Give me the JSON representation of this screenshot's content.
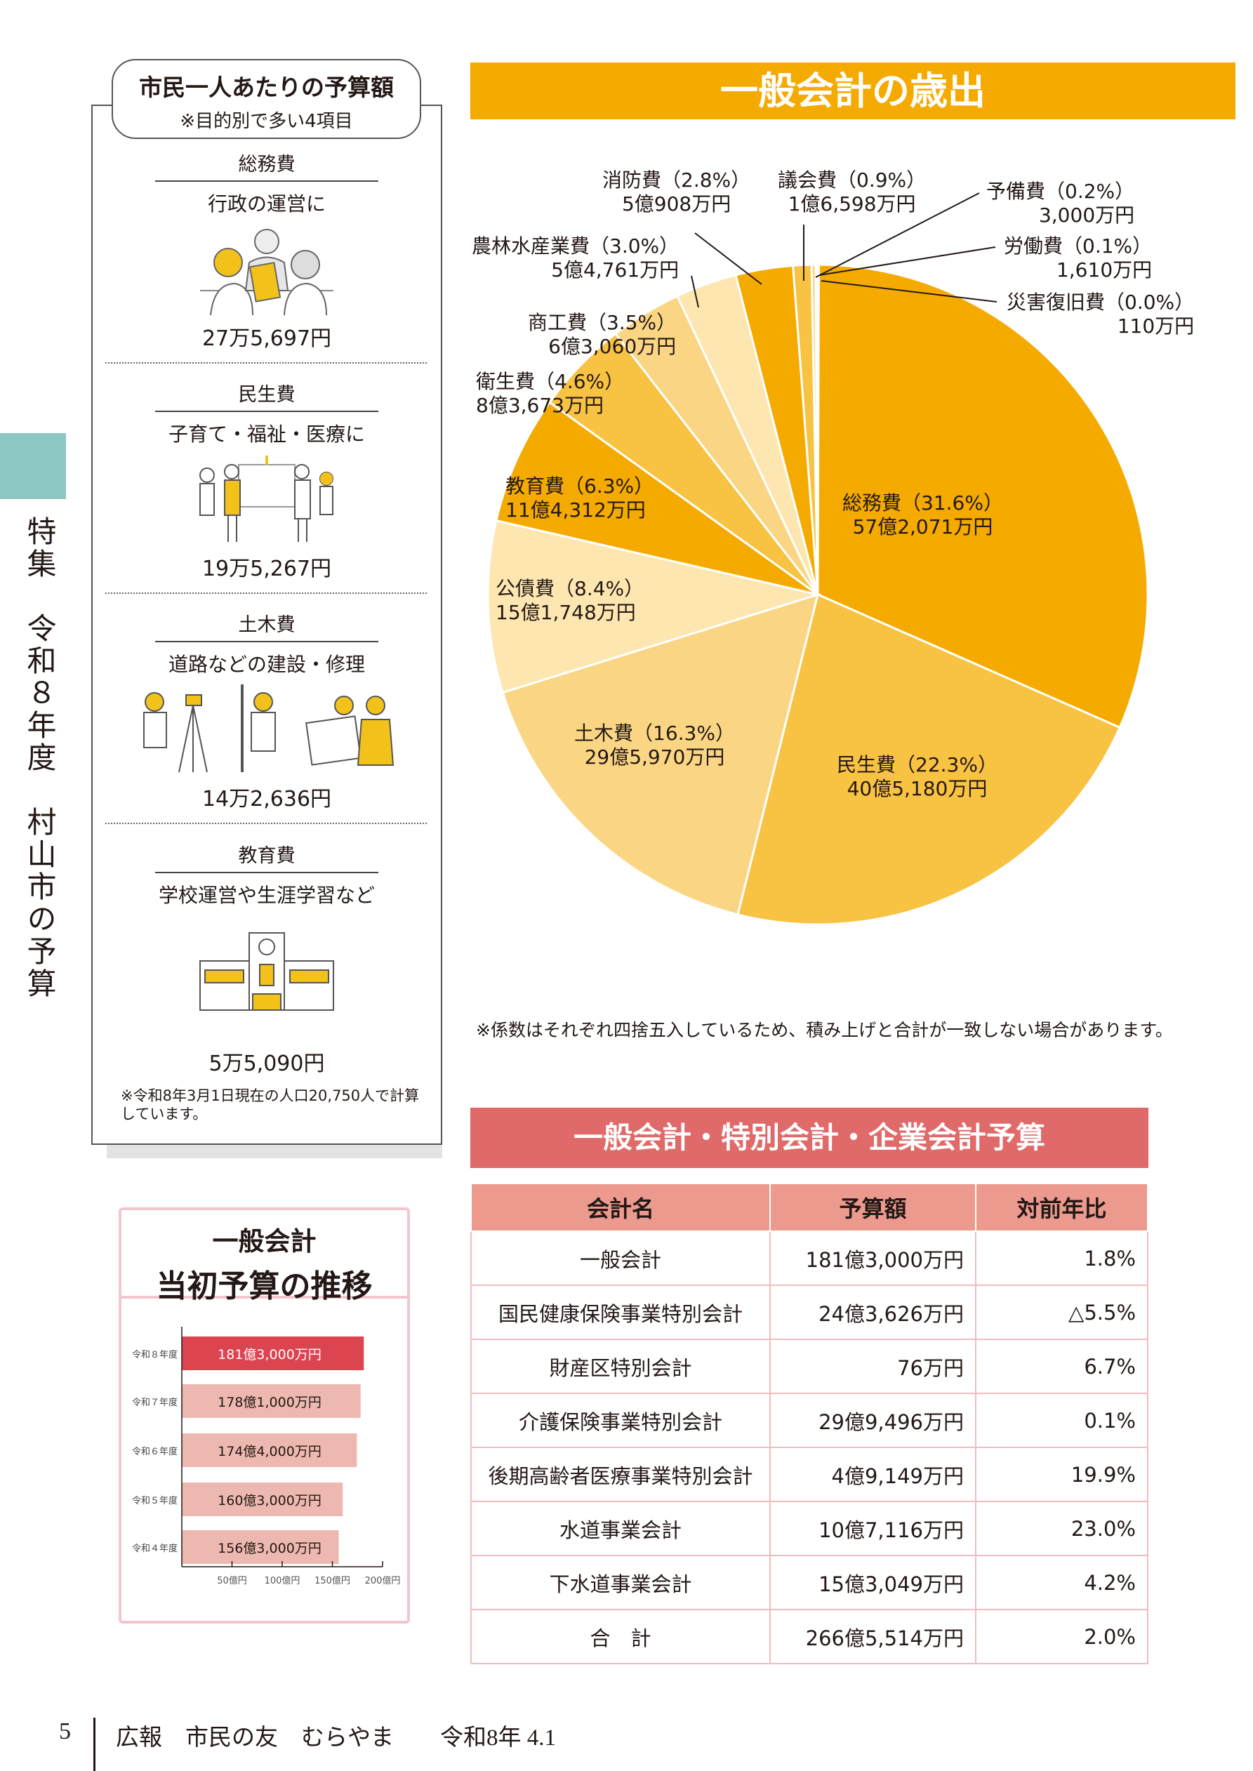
{
  "side_tab": {
    "vertical_title": "特集　令和８年度　村山市の予算",
    "color": "#8CC7C3"
  },
  "per_capita": {
    "title": "市民一人あたりの予算額",
    "subtitle": "※目的別で多い4項目",
    "items": [
      {
        "category": "総務費",
        "description": "行政の運営に",
        "icon": "meeting-illustration",
        "amount": "27万5,697円"
      },
      {
        "category": "民生費",
        "description": "子育て・福祉・医療に",
        "icon": "welfare-people-illustration",
        "amount": "19万5,267円"
      },
      {
        "category": "土木費",
        "description": "道路などの建設・修理",
        "icon": "construction-workers-illustration",
        "amount": "14万2,636円"
      },
      {
        "category": "教育費",
        "description": "学校運営や生涯学習など",
        "icon": "school-building-illustration",
        "amount": "5万5,090円"
      }
    ],
    "note": "※令和8年3月1日現在の人口20,750人で計算しています。"
  },
  "chart_data": [
    {
      "type": "pie",
      "title": "一般会計の歳出",
      "slices": [
        {
          "name": "総務費",
          "percent": 31.6,
          "amount": "57億2,071万円",
          "label": "総務費（31.6%）",
          "color": "#F5AA00"
        },
        {
          "name": "民生費",
          "percent": 22.3,
          "amount": "40億5,180万円",
          "label": "民生費（22.3%）",
          "color": "#F8C242"
        },
        {
          "name": "土木費",
          "percent": 16.3,
          "amount": "29億5,970万円",
          "label": "土木費（16.3%）",
          "color": "#FAD684"
        },
        {
          "name": "公債費",
          "percent": 8.4,
          "amount": "15億1,748万円",
          "label": "公債費（8.4%）",
          "color": "#FDE6B0"
        },
        {
          "name": "教育費",
          "percent": 6.3,
          "amount": "11億4,312万円",
          "label": "教育費（6.3%）",
          "color": "#F5AA00"
        },
        {
          "name": "衛生費",
          "percent": 4.6,
          "amount": "8億3,673万円",
          "label": "衛生費（4.6%）",
          "color": "#F8C242"
        },
        {
          "name": "商工費",
          "percent": 3.5,
          "amount": "6億3,060万円",
          "label": "商工費（3.5%）",
          "color": "#FAD684"
        },
        {
          "name": "農林水産業費",
          "percent": 3.0,
          "amount": "5億4,761万円",
          "label": "農林水産業費（3.0%）",
          "color": "#FDE6B0"
        },
        {
          "name": "消防費",
          "percent": 2.8,
          "amount": "5億908万円",
          "label": "消防費（2.8%）",
          "color": "#F5AA00"
        },
        {
          "name": "議会費",
          "percent": 0.9,
          "amount": "1億6,598万円",
          "label": "議会費（0.9%）",
          "color": "#F8C242"
        },
        {
          "name": "予備費",
          "percent": 0.2,
          "amount": "3,000万円",
          "label": "予備費（0.2%）",
          "color": "#FAD684"
        },
        {
          "name": "労働費",
          "percent": 0.1,
          "amount": "1,610万円",
          "label": "労働費（0.1%）",
          "color": "#FDE6B0"
        },
        {
          "name": "災害復旧費",
          "percent": 0.0,
          "amount": "110万円",
          "label": "災害復旧費（0.0%）",
          "color": "#F5AA00"
        }
      ],
      "note": "※係数はそれぞれ四捨五入しているため、積み上げと合計が一致しない場合があります。"
    },
    {
      "type": "bar",
      "orientation": "horizontal",
      "title": "一般会計",
      "subtitle": "当初予算の推移",
      "categories": [
        "令和８年度",
        "令和７年度",
        "令和６年度",
        "令和５年度",
        "令和４年度"
      ],
      "values": [
        181.3,
        178.1,
        174.4,
        160.3,
        156.3
      ],
      "value_labels": [
        "181億3,000万円",
        "178億1,000万円",
        "174億4,000万円",
        "160億3,000万円",
        "156億3,000万円"
      ],
      "unit": "億円",
      "xlim": [
        0,
        200
      ],
      "xticks": [
        "50億円",
        "100億円",
        "150億円",
        "200億円"
      ],
      "xtick_values": [
        50,
        100,
        150,
        200
      ],
      "highlight_color": "#DC4450",
      "bar_color": "#EDB8B0"
    }
  ],
  "budget_table": {
    "title": "一般会計・特別会計・企業会計予算",
    "headers": [
      "会計名",
      "予算額",
      "対前年比"
    ],
    "rows": [
      [
        "一般会計",
        "181億3,000万円",
        "1.8%"
      ],
      [
        "国民健康保険事業特別会計",
        "24億3,626万円",
        "△5.5%"
      ],
      [
        "財産区特別会計",
        "76万円",
        "6.7%"
      ],
      [
        "介護保険事業特別会計",
        "29億9,496万円",
        "0.1%"
      ],
      [
        "後期高齢者医療事業特別会計",
        "4億9,149万円",
        "19.9%"
      ],
      [
        "水道事業会計",
        "10億7,116万円",
        "23.0%"
      ],
      [
        "下水道事業会計",
        "15億3,049万円",
        "4.2%"
      ],
      [
        "合　計",
        "266億5,514万円",
        "2.0%"
      ]
    ]
  },
  "footer": {
    "page": "5",
    "publication": "広報　市民の友　むらやま　　令和8年 4.1"
  }
}
